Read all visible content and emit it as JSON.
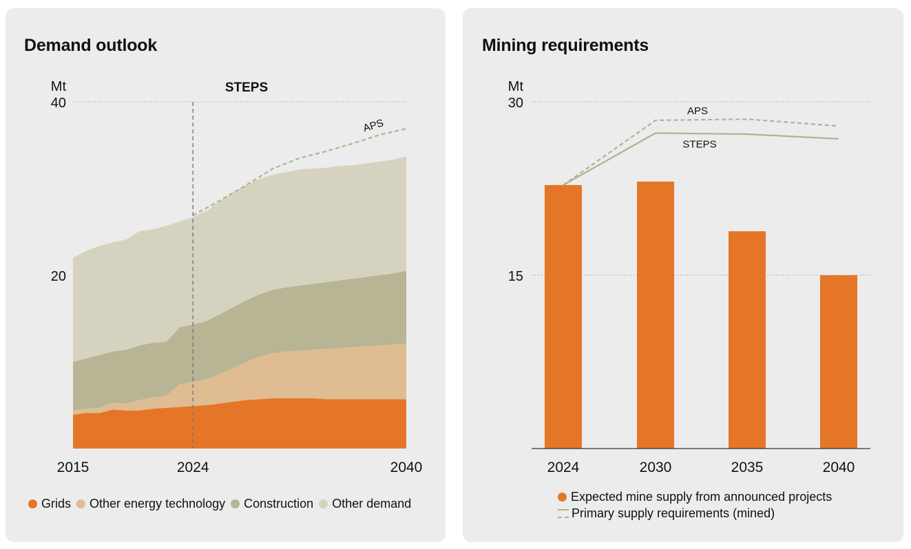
{
  "colors": {
    "grids": "#e57627",
    "other_energy": "#e0bc92",
    "construction": "#b7b593",
    "other_demand": "#d5d3c0",
    "bar": "#e57627",
    "line": "#aeb38f",
    "gridline": "#9a9a9a"
  },
  "left": {
    "title": "Demand outlook",
    "legend": [
      {
        "name": "Grids",
        "color": "#e57627"
      },
      {
        "name": "Other energy technology",
        "color": "#e0bc92"
      },
      {
        "name": "Construction",
        "color": "#b7b593"
      },
      {
        "name": "Other demand",
        "color": "#d5d3c0"
      }
    ]
  },
  "right": {
    "title": "Mining requirements",
    "legend": [
      {
        "name": "Expected mine supply from announced projects",
        "color": "#e57627",
        "type": "dot"
      },
      {
        "name": "Primary supply requirements (mined)",
        "color": "#aeb38f",
        "type": "line"
      }
    ]
  },
  "chart_data": [
    {
      "type": "area",
      "stacked": true,
      "title": "Demand outlook",
      "ylabel": "Mt",
      "ylim": [
        0,
        40
      ],
      "yticks": [
        20,
        40
      ],
      "xlim": [
        2015,
        2040
      ],
      "xticks": [
        2015,
        2024,
        2040
      ],
      "divider": {
        "x": 2024,
        "label": "STEPS"
      },
      "x": [
        2015,
        2016,
        2017,
        2018,
        2019,
        2020,
        2021,
        2022,
        2023,
        2024,
        2025,
        2026,
        2027,
        2028,
        2029,
        2030,
        2031,
        2032,
        2033,
        2034,
        2035,
        2036,
        2037,
        2038,
        2039,
        2040
      ],
      "series": [
        {
          "name": "Grids",
          "values": [
            3.9,
            4.1,
            4.1,
            4.5,
            4.4,
            4.4,
            4.6,
            4.7,
            4.8,
            4.9,
            5.0,
            5.2,
            5.4,
            5.6,
            5.7,
            5.8,
            5.8,
            5.8,
            5.8,
            5.7,
            5.7,
            5.7,
            5.7,
            5.7,
            5.7,
            5.7
          ]
        },
        {
          "name": "Other energy technology",
          "values": [
            0.5,
            0.5,
            0.6,
            0.8,
            0.8,
            1.2,
            1.3,
            1.4,
            2.6,
            2.8,
            3.0,
            3.4,
            3.9,
            4.4,
            4.9,
            5.2,
            5.4,
            5.5,
            5.6,
            5.8,
            5.9,
            6.0,
            6.1,
            6.2,
            6.3,
            6.4
          ]
        },
        {
          "name": "Construction",
          "values": [
            5.6,
            5.8,
            6.1,
            5.9,
            6.2,
            6.3,
            6.3,
            6.2,
            6.6,
            6.6,
            6.7,
            6.9,
            7.0,
            7.1,
            7.2,
            7.3,
            7.4,
            7.5,
            7.6,
            7.7,
            7.8,
            7.9,
            8.0,
            8.1,
            8.2,
            8.4
          ]
        },
        {
          "name": "Other demand",
          "values": [
            12.0,
            12.4,
            12.6,
            12.6,
            12.7,
            13.2,
            13.1,
            13.4,
            12.2,
            12.4,
            12.7,
            13.0,
            13.2,
            13.3,
            13.3,
            13.3,
            13.3,
            13.4,
            13.3,
            13.2,
            13.2,
            13.1,
            13.1,
            13.1,
            13.1,
            13.2
          ]
        }
      ],
      "projection": {
        "name": "APS",
        "x": [
          2024,
          2026,
          2028,
          2030,
          2032,
          2034,
          2036,
          2038,
          2040
        ],
        "values": [
          26.9,
          28.6,
          30.4,
          32.3,
          33.5,
          34.3,
          35.2,
          36.2,
          36.9
        ]
      }
    },
    {
      "type": "bar",
      "title": "Mining requirements",
      "ylabel": "Mt",
      "ylim": [
        0,
        30
      ],
      "yticks": [
        15,
        30
      ],
      "categories": [
        "2024",
        "2030",
        "2035",
        "2040"
      ],
      "values": [
        22.8,
        23.1,
        18.8,
        15.0
      ],
      "lines": [
        {
          "name": "APS",
          "style": "dashed",
          "values": [
            22.8,
            28.4,
            28.5,
            27.9
          ]
        },
        {
          "name": "STEPS",
          "style": "solid",
          "values": [
            22.8,
            27.3,
            27.2,
            26.8
          ]
        }
      ]
    }
  ]
}
